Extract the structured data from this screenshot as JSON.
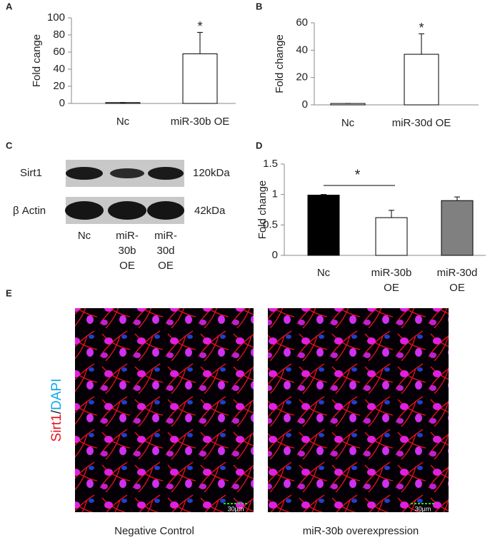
{
  "panel_labels": [
    "A",
    "B",
    "C",
    "D",
    "E"
  ],
  "chart_data": [
    {
      "type": "bar",
      "y_label": "Fold cange",
      "categories": [
        "Nc",
        "miR-30b OE"
      ],
      "values": [
        1,
        58
      ],
      "errors": [
        0,
        25
      ],
      "colors": [
        "#ffffff",
        "#ffffff"
      ],
      "ylim": [
        0,
        100
      ],
      "yticks": [
        0,
        20,
        40,
        60,
        80,
        100
      ],
      "annotation": "*"
    },
    {
      "type": "bar",
      "y_label": "Fold change",
      "categories": [
        "Nc",
        "miR-30d OE"
      ],
      "values": [
        1,
        37
      ],
      "errors": [
        0,
        15
      ],
      "colors": [
        "#ffffff",
        "#ffffff"
      ],
      "ylim": [
        0,
        60
      ],
      "yticks": [
        0,
        20,
        40,
        60
      ],
      "annotation": "*"
    },
    {
      "type": "bar",
      "y_label": "Fold change",
      "categories": [
        "Nc",
        "miR-30b OE",
        "miR-30d OE"
      ],
      "values": [
        0.99,
        0.62,
        0.9
      ],
      "errors": [
        0.01,
        0.12,
        0.06
      ],
      "colors": [
        "#000000",
        "#ffffff",
        "#808080"
      ],
      "ylim": [
        0,
        1.5
      ],
      "yticks": [
        0,
        0.5,
        1,
        1.5
      ],
      "annotation": "*"
    }
  ],
  "blot": {
    "rows": [
      "Sirt1",
      "β Actin"
    ],
    "sizes": [
      "120kDa",
      "42kDa"
    ],
    "lanes": [
      "Nc",
      "miR-30b OE",
      "miR-30d OE"
    ]
  },
  "images": {
    "stain": [
      "Sirt1",
      "/",
      "DAPI"
    ],
    "scale": "30μm",
    "captions": [
      "Negative Control",
      "miR-30b overexpression"
    ]
  }
}
